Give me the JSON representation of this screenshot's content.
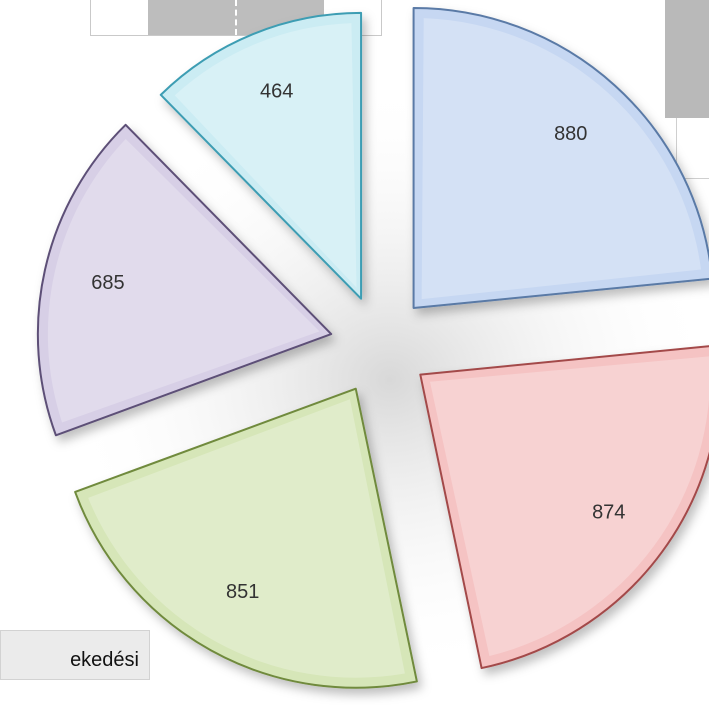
{
  "caption_fragment": "ekedési",
  "chart_data": {
    "type": "pie",
    "style": "exploded",
    "title": "",
    "slices": [
      {
        "value": 880,
        "label": "880",
        "color": "#c6d7f2",
        "stroke": "#5a7aa6"
      },
      {
        "value": 874,
        "label": "874",
        "color": "#f5c3c3",
        "stroke": "#a34a4a"
      },
      {
        "value": 851,
        "label": "851",
        "color": "#d6e6b8",
        "stroke": "#6f8a3c"
      },
      {
        "value": 685,
        "label": "685",
        "color": "#d7cfe6",
        "stroke": "#5d5077"
      },
      {
        "value": 464,
        "label": "464",
        "color": "#cbecf3",
        "stroke": "#3d9db3"
      }
    ]
  }
}
